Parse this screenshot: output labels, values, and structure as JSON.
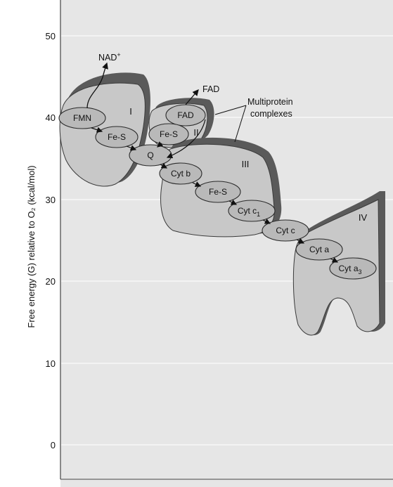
{
  "diagram": {
    "y_axis": {
      "label": "Free energy (G) relative to O₂ (kcal/mol)",
      "ticks": [
        "50",
        "40",
        "30",
        "20",
        "10",
        "0"
      ]
    },
    "carriers": {
      "fmn": "FMN",
      "fes1": "Fe-S",
      "fad": "FAD",
      "fes2": "Fe-S",
      "q": "Q",
      "cyt_b": "Cyt b",
      "fes3": "Fe-S",
      "cyt_c1": "Cyt c",
      "cyt_c1_sub": "1",
      "cyt_c": "Cyt c",
      "cyt_a": "Cyt a",
      "cyt_a3": "Cyt a",
      "cyt_a3_sub": "3"
    },
    "complexes": {
      "c1": "I",
      "c2": "II",
      "c3": "III",
      "c4": "IV"
    },
    "annotations": {
      "nad": "NAD",
      "nad_sup": "+",
      "fad_out": "FAD",
      "multiprotein_line1": "Multiprotein",
      "multiprotein_line2": "complexes"
    },
    "colors": {
      "panel": "#e6e6e6",
      "complex_fill": "#c8c8c8",
      "complex_shadow": "#5a5a5a",
      "carrier_fill": "#b9b9b9",
      "gridline": "#f7f7f7"
    }
  }
}
